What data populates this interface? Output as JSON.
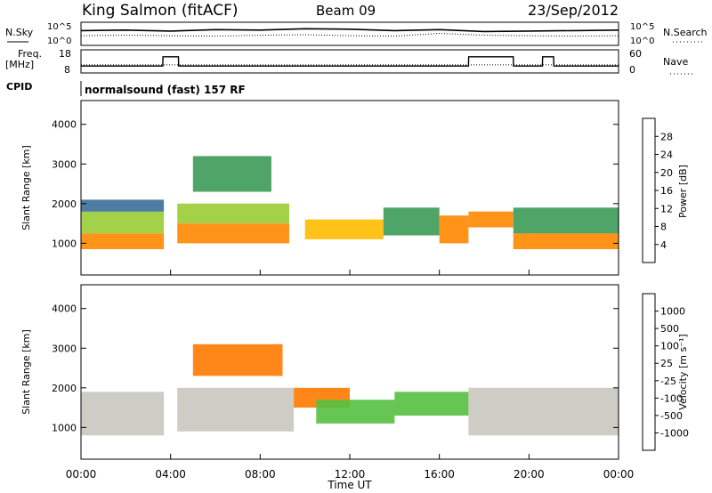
{
  "header": {
    "station": "King Salmon (fitACF)",
    "beam": "Beam 09",
    "date": "23/Sep/2012",
    "cpid_label": "CPID",
    "cpid_value": "normalsound (fast) 157 RF"
  },
  "top_panels": {
    "nsky_label": "N.Sky",
    "nsearch_label": "N.Search",
    "noise_ticks_left": [
      "10^5",
      "10^0"
    ],
    "noise_ticks_right": [
      "10^5",
      "10^0"
    ],
    "freq_label_line1": "Freq.",
    "freq_label_line2": "[MHz]",
    "freq_ticks": [
      "18",
      "8"
    ],
    "nave_label": "Nave",
    "nave_ticks": [
      "60",
      "0"
    ]
  },
  "time_axis": {
    "label": "Time UT",
    "ticks": [
      "00:00",
      "04:00",
      "08:00",
      "12:00",
      "16:00",
      "20:00",
      "00:00"
    ]
  },
  "range_axis": {
    "label": "Slant Range [km]",
    "ticks": [
      "1000",
      "2000",
      "3000",
      "4000"
    ]
  },
  "power_bar": {
    "label": "Power [dB]",
    "ticks": [
      "28",
      "24",
      "20",
      "16",
      "12",
      "8",
      "4"
    ],
    "colors": [
      "#dd0000",
      "#ff4400",
      "#ff8800",
      "#ffbb00",
      "#dddd00",
      "#99cc33",
      "#3c9a56",
      "#3a6f9a",
      "#2c3fb0",
      "#0000ff"
    ]
  },
  "velocity_bar": {
    "label": "Velocity [m s⁻¹]",
    "ticks": [
      "1000",
      "500",
      "100",
      "25",
      "-25",
      "-100",
      "-500",
      "-1000"
    ],
    "colors": [
      "#2a3eb8",
      "#3a6aa0",
      "#3a8a55",
      "#55c040",
      "#c8c8c0",
      "#e8a000",
      "#ff7a00",
      "#ff3300",
      "#dd0000"
    ]
  },
  "chart_data": [
    {
      "type": "line",
      "title": "N.Sky / N.Search",
      "xlabel": "Time UT",
      "x_range_hours": [
        0,
        24
      ],
      "ylim_log": [
        0,
        5
      ],
      "series": [
        {
          "name": "N.Sky",
          "x": [
            0,
            2,
            4,
            6,
            8,
            10,
            12,
            14,
            16,
            18,
            20,
            22,
            24
          ],
          "values": [
            3.2,
            3.3,
            3.1,
            3.4,
            3.3,
            3.6,
            3.5,
            3.2,
            3.4,
            3.0,
            3.1,
            3.2,
            3.3
          ]
        },
        {
          "name": "N.Search",
          "x": [
            0,
            2,
            4,
            6,
            8,
            10,
            12,
            14,
            16,
            18,
            20,
            22,
            24
          ],
          "values": [
            2.1,
            2.2,
            2.1,
            2.0,
            2.2,
            2.3,
            2.1,
            2.0,
            2.6,
            2.2,
            2.1,
            2.0,
            2.1
          ]
        }
      ]
    },
    {
      "type": "line",
      "title": "Freq / Nave",
      "xlabel": "Time UT",
      "x_range_hours": [
        0,
        24
      ],
      "ylim": [
        8,
        18
      ],
      "series": [
        {
          "name": "Freq.",
          "x": [
            0,
            3.65,
            3.66,
            4.35,
            4.36,
            17.3,
            17.31,
            19.3,
            19.31,
            20.6,
            20.61,
            21.1,
            21.11,
            24
          ],
          "values": [
            11,
            11,
            15,
            15,
            11,
            11,
            15,
            15,
            11,
            11,
            15,
            15,
            11,
            11
          ]
        },
        {
          "name": "Nave",
          "x": [
            0,
            24
          ],
          "values": [
            11.5,
            11.5
          ]
        }
      ]
    },
    {
      "type": "heatmap",
      "title": "Power [dB]",
      "xlabel": "Time UT",
      "ylabel": "Slant Range [km]",
      "x_range_hours": [
        0,
        24
      ],
      "ylim": [
        200,
        4600
      ],
      "value_range": [
        0,
        32
      ],
      "regions": [
        {
          "t": [
            0,
            3.7
          ],
          "r": [
            850,
            1250
          ],
          "value": 26
        },
        {
          "t": [
            0,
            3.7
          ],
          "r": [
            1250,
            1800
          ],
          "value": 14
        },
        {
          "t": [
            0,
            3.7
          ],
          "r": [
            1800,
            2100
          ],
          "value": 6
        },
        {
          "t": [
            4.3,
            9.3
          ],
          "r": [
            1000,
            1500
          ],
          "value": 26
        },
        {
          "t": [
            4.3,
            9.3
          ],
          "r": [
            1500,
            2000
          ],
          "value": 14
        },
        {
          "t": [
            5,
            8.5
          ],
          "r": [
            2300,
            3200
          ],
          "value": 10
        },
        {
          "t": [
            10,
            13.5
          ],
          "r": [
            1100,
            1600
          ],
          "value": 22
        },
        {
          "t": [
            13.5,
            16
          ],
          "r": [
            1200,
            1900
          ],
          "value": 12
        },
        {
          "t": [
            16,
            17.3
          ],
          "r": [
            1000,
            1700
          ],
          "value": 24
        },
        {
          "t": [
            17.3,
            19.3
          ],
          "r": [
            1400,
            1800
          ],
          "value": 24
        },
        {
          "t": [
            19.3,
            24
          ],
          "r": [
            850,
            1250
          ],
          "value": 26
        },
        {
          "t": [
            19.3,
            24
          ],
          "r": [
            1250,
            1900
          ],
          "value": 12
        }
      ]
    },
    {
      "type": "heatmap",
      "title": "Velocity [m s⁻¹]",
      "xlabel": "Time UT",
      "ylabel": "Slant Range [km]",
      "x_range_hours": [
        0,
        24
      ],
      "ylim": [
        200,
        4600
      ],
      "value_range": [
        -1000,
        1000
      ],
      "regions": [
        {
          "t": [
            0,
            3.7
          ],
          "r": [
            800,
            1900
          ],
          "value": 0
        },
        {
          "t": [
            4.3,
            9.5
          ],
          "r": [
            900,
            2000
          ],
          "value": 0
        },
        {
          "t": [
            5,
            9
          ],
          "r": [
            2300,
            3100
          ],
          "value": -300
        },
        {
          "t": [
            9.5,
            12
          ],
          "r": [
            1500,
            2000
          ],
          "value": -400
        },
        {
          "t": [
            10.5,
            14
          ],
          "r": [
            1100,
            1700
          ],
          "value": 60
        },
        {
          "t": [
            14,
            17.3
          ],
          "r": [
            1300,
            1900
          ],
          "value": 40
        },
        {
          "t": [
            17.3,
            24
          ],
          "r": [
            800,
            2000
          ],
          "value": 0
        }
      ]
    }
  ]
}
